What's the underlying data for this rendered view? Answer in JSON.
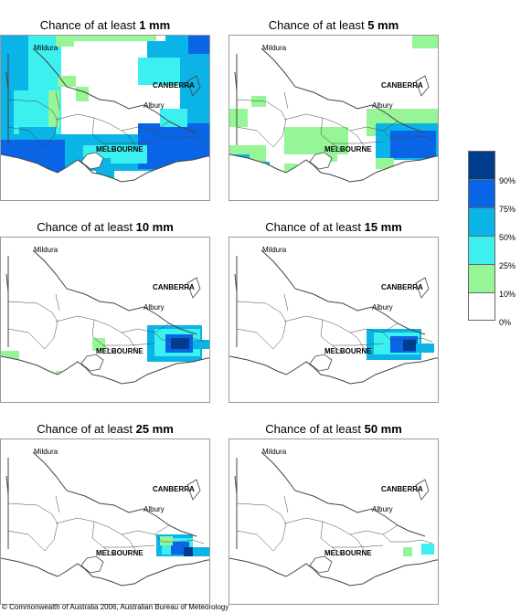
{
  "title_prefix": "Chance of at least",
  "panels": [
    {
      "amount": "1 mm"
    },
    {
      "amount": "5 mm"
    },
    {
      "amount": "10 mm"
    },
    {
      "amount": "15 mm"
    },
    {
      "amount": "25 mm"
    },
    {
      "amount": "50 mm"
    }
  ],
  "places": {
    "mildura": "Mildura",
    "canberra": "CANBERRA",
    "albury": "Albury",
    "melbourne": "MELBOURNE"
  },
  "legend": {
    "colors": [
      "#003c8c",
      "#0a64e6",
      "#0ab4e6",
      "#3cf0f0",
      "#96f596",
      "#ffffff"
    ],
    "ticks": [
      "90%",
      "75%",
      "50%",
      "25%",
      "10%",
      "0%"
    ]
  },
  "copyright": "© Commonwealth of Australia 2006, Australian Bureau of Meteorology"
}
